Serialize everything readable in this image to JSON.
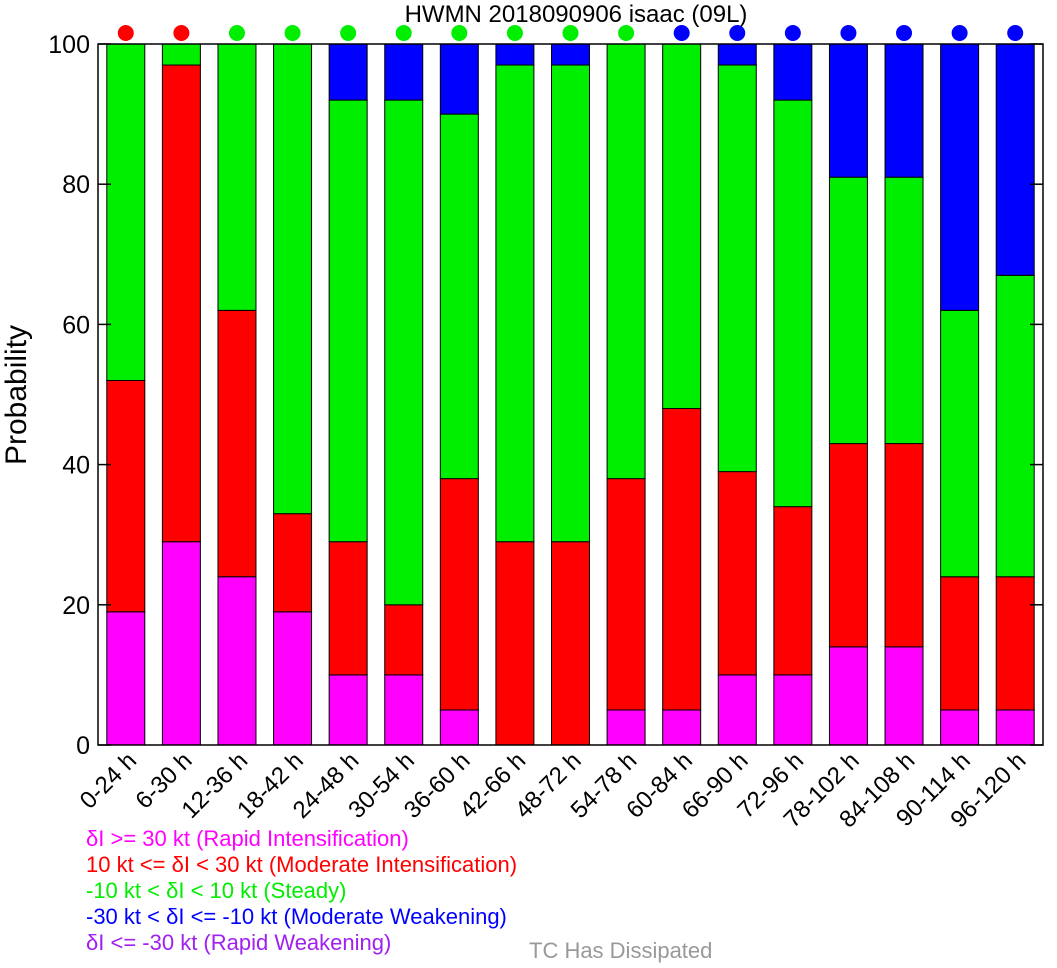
{
  "chart_data": {
    "type": "bar",
    "stacked": true,
    "title": "HWMN 2018090906 isaac (09L)",
    "ylabel": "Probability",
    "ylim": [
      0,
      100
    ],
    "yticks": [
      0,
      20,
      40,
      60,
      80,
      100
    ],
    "categories": [
      "0-24 h",
      "6-30 h",
      "12-36 h",
      "18-42 h",
      "24-48 h",
      "30-54 h",
      "36-60 h",
      "42-66 h",
      "48-72 h",
      "54-78 h",
      "60-84 h",
      "66-90 h",
      "72-96 h",
      "78-102 h",
      "84-108 h",
      "90-114 h",
      "96-120 h"
    ],
    "series": [
      {
        "name": "δI >= 30 kt (Rapid Intensification)",
        "color": "#ff00ff",
        "values": [
          19,
          29,
          24,
          19,
          10,
          10,
          5,
          0,
          0,
          5,
          5,
          10,
          10,
          14,
          14,
          5,
          5
        ]
      },
      {
        "name": "10 kt <= δI < 30 kt (Moderate Intensification)",
        "color": "#ff0000",
        "values": [
          33,
          68,
          38,
          14,
          19,
          10,
          33,
          29,
          29,
          33,
          43,
          29,
          24,
          29,
          29,
          19,
          19
        ]
      },
      {
        "name": "-10 kt < δI < 10 kt (Steady)",
        "color": "#00ee00",
        "values": [
          48,
          3,
          38,
          67,
          63,
          72,
          52,
          68,
          68,
          62,
          52,
          58,
          58,
          38,
          38,
          38,
          43
        ]
      },
      {
        "name": "-30 kt < δI <= -10 kt (Moderate Weakening)",
        "color": "#0000ff",
        "values": [
          0,
          0,
          0,
          0,
          8,
          8,
          10,
          3,
          3,
          0,
          0,
          3,
          8,
          19,
          19,
          38,
          33
        ]
      },
      {
        "name": "δI <= -30 kt (Rapid Weakening)",
        "color": "#a020f0",
        "values": [
          0,
          0,
          0,
          0,
          0,
          0,
          0,
          0,
          0,
          0,
          0,
          0,
          0,
          0,
          0,
          0,
          0
        ]
      }
    ],
    "indicator_dots": [
      "#ff0000",
      "#ff0000",
      "#00ee00",
      "#00ee00",
      "#00ee00",
      "#00ee00",
      "#00ee00",
      "#00ee00",
      "#00ee00",
      "#00ee00",
      "#0000ff",
      "#0000ff",
      "#0000ff",
      "#0000ff",
      "#0000ff",
      "#0000ff",
      "#0000ff"
    ],
    "legend_placement": "bottom-left",
    "grid": false
  },
  "legend": {
    "items": [
      {
        "label": "δI >= 30 kt (Rapid Intensification)",
        "color": "#ff00ff"
      },
      {
        "label": "10 kt <= δI < 30 kt (Moderate Intensification)",
        "color": "#ff0000"
      },
      {
        "label": "-10 kt < δI < 10 kt (Steady)",
        "color": "#00ee00"
      },
      {
        "label": "-30 kt < δI <= -10 kt (Moderate Weakening)",
        "color": "#0000ff"
      },
      {
        "label": "δI <= -30 kt (Rapid Weakening)",
        "color": "#a020f0"
      }
    ],
    "dissipated_label": "TC Has Dissipated",
    "dissipated_color": "#999999"
  }
}
